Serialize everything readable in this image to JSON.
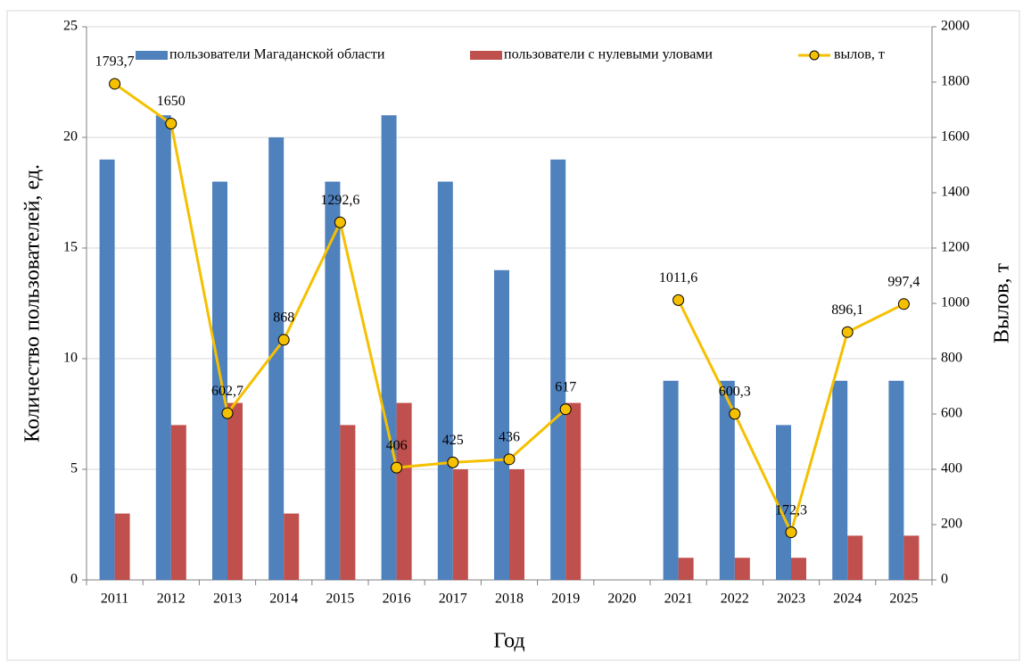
{
  "chart_data": {
    "type": "bar_line",
    "categories": [
      "2011",
      "2012",
      "2013",
      "2014",
      "2015",
      "2016",
      "2017",
      "2018",
      "2019",
      "2020",
      "2021",
      "2022",
      "2023",
      "2024",
      "2025"
    ],
    "series": [
      {
        "name": "пользователи Магаданской области",
        "color": "#4f81bd",
        "type": "bar",
        "values": [
          19,
          21,
          18,
          20,
          18,
          21,
          18,
          14,
          19,
          null,
          9,
          9,
          7,
          9,
          9
        ]
      },
      {
        "name": "пользователи с нулевыми уловами",
        "color": "#c0504d",
        "type": "bar",
        "values": [
          3,
          7,
          8,
          3,
          7,
          8,
          5,
          5,
          8,
          null,
          1,
          1,
          1,
          2,
          2
        ]
      },
      {
        "name": "вылов, т",
        "color": "#f5c000",
        "type": "line",
        "axis": "y2",
        "values": [
          1793.7,
          1650,
          602.7,
          868,
          1292.6,
          406,
          425,
          436,
          617,
          null,
          1011.6,
          600.3,
          172.3,
          896.1,
          997.4
        ],
        "value_labels": [
          "1793,7",
          "1650",
          "602,7",
          "868",
          "1292,6",
          "406",
          "425",
          "436",
          "617",
          null,
          "1011,6",
          "600,3",
          "172,3",
          "896,1",
          "997,4"
        ]
      }
    ],
    "ylabel": "Количество пользователей, ед.",
    "y2label": "Вылов, т",
    "xlabel": "Год",
    "ylim": [
      0,
      25
    ],
    "yticks": [
      0,
      5,
      10,
      15,
      20,
      25
    ],
    "y2lim": [
      0,
      2000
    ],
    "y2ticks": [
      0,
      200,
      400,
      600,
      800,
      1000,
      1200,
      1400,
      1600,
      1800,
      2000
    ],
    "grid": true,
    "legend": "top"
  }
}
